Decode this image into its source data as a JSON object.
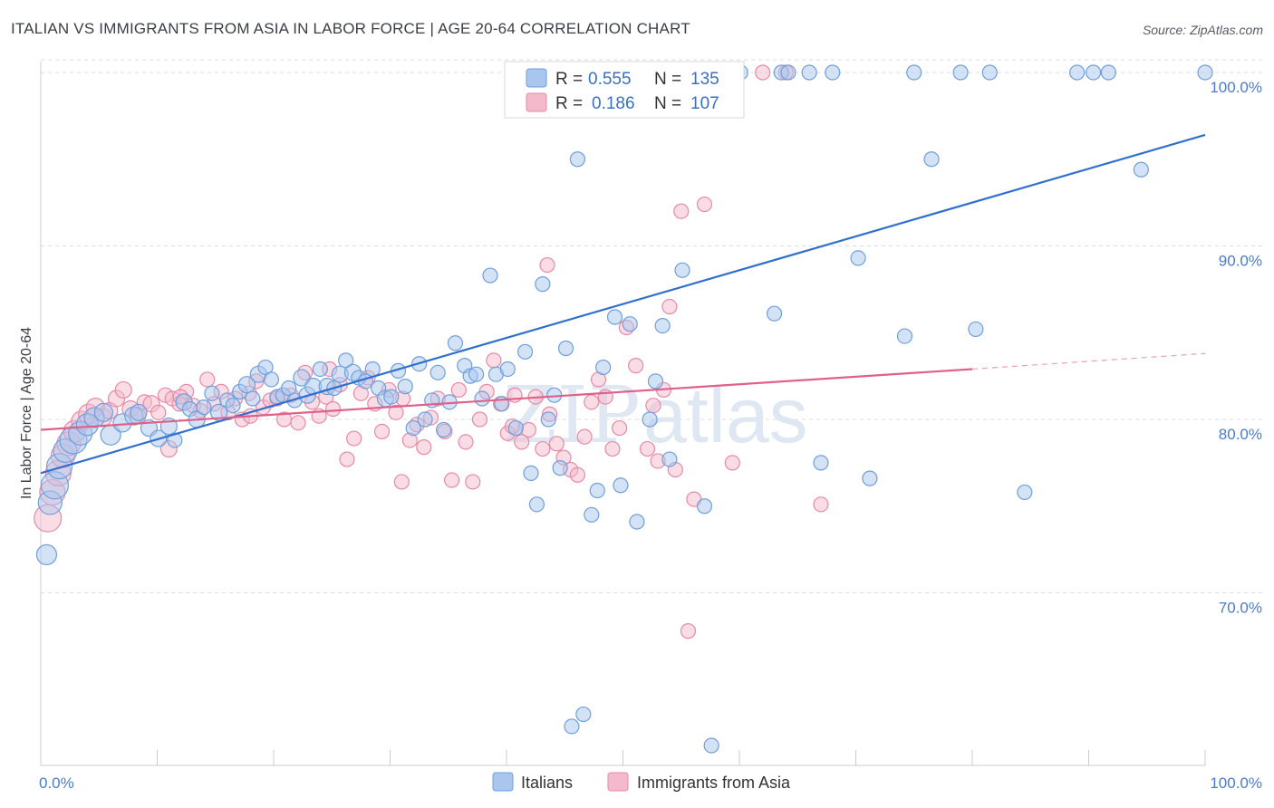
{
  "title": "ITALIAN VS IMMIGRANTS FROM ASIA IN LABOR FORCE | AGE 20-64 CORRELATION CHART",
  "source": "Source: ZipAtlas.com",
  "watermark": {
    "zip": "ZIP",
    "atlas": "atlas"
  },
  "legend": {
    "rows": [
      {
        "r_label": "R =",
        "r_value": "0.555",
        "n_label": "N =",
        "n_value": "135"
      },
      {
        "r_label": "R =",
        "r_value": "0.186",
        "n_label": "N =",
        "n_value": "107"
      }
    ]
  },
  "bottom_legend": [
    "Italians",
    "Immigrants from Asia"
  ],
  "colors": {
    "italians_fill": "#a9c6ee",
    "italians_stroke": "#6f9fdc",
    "italians_line": "#2f6fcf",
    "asia_fill": "#f5b9cc",
    "asia_stroke": "#e68aa8",
    "asia_line": "#e0608a",
    "grid": "#d9dde3",
    "tick_text": "#4a7cc7"
  },
  "chart_data": {
    "type": "scatter",
    "title": "ITALIAN VS IMMIGRANTS FROM ASIA IN LABOR FORCE | AGE 20-64 CORRELATION CHART",
    "xlabel": "",
    "ylabel": "In Labor Force | Age 20-64",
    "xlim": [
      0,
      100
    ],
    "ylim": [
      60.5,
      102.5
    ],
    "x_tick_labels": [
      "0.0%",
      "100.0%"
    ],
    "y_ticks": [
      70,
      80,
      90,
      100
    ],
    "y_tick_labels": [
      "70.0%",
      "80.0%",
      "90.0%",
      "100.0%"
    ],
    "grid": true,
    "legend_position": "top-center",
    "series": [
      {
        "name": "Italians",
        "R": 0.555,
        "N": 135,
        "trend": {
          "x0": 0,
          "y0": 76.9,
          "x1": 100,
          "y1": 96.4
        },
        "points": [
          [
            0.5,
            72.2,
            11
          ],
          [
            0.8,
            75.2,
            13
          ],
          [
            1.2,
            76.2,
            15
          ],
          [
            1.6,
            77.3,
            14
          ],
          [
            2.1,
            78.2,
            13
          ],
          [
            2.8,
            78.8,
            15
          ],
          [
            3.4,
            79.2,
            13
          ],
          [
            4.0,
            79.7,
            12
          ],
          [
            4.6,
            80.1,
            11
          ],
          [
            5.4,
            80.4,
            10
          ],
          [
            6.0,
            79.1,
            11
          ],
          [
            7.0,
            79.8,
            10
          ],
          [
            8.0,
            80.2,
            10
          ],
          [
            8.4,
            80.4,
            9
          ],
          [
            9.3,
            79.5,
            9
          ],
          [
            10.1,
            78.9,
            9
          ],
          [
            11.0,
            79.6,
            9
          ],
          [
            11.5,
            78.8,
            8
          ],
          [
            12.3,
            81.0,
            9
          ],
          [
            12.8,
            80.6,
            8
          ],
          [
            13.4,
            80.0,
            9
          ],
          [
            14.0,
            80.7,
            8
          ],
          [
            14.7,
            81.5,
            8
          ],
          [
            15.3,
            80.4,
            9
          ],
          [
            16.0,
            81.1,
            8
          ],
          [
            16.5,
            80.8,
            8
          ],
          [
            17.1,
            81.6,
            8
          ],
          [
            17.7,
            82.0,
            9
          ],
          [
            18.2,
            81.2,
            8
          ],
          [
            18.7,
            82.6,
            9
          ],
          [
            19.3,
            83.0,
            8
          ],
          [
            19.8,
            82.3,
            8
          ],
          [
            20.3,
            81.3,
            8
          ],
          [
            20.8,
            81.4,
            8
          ],
          [
            21.3,
            81.8,
            8
          ],
          [
            21.8,
            81.1,
            8
          ],
          [
            22.4,
            82.4,
            9
          ],
          [
            22.9,
            81.4,
            9
          ],
          [
            23.4,
            81.9,
            9
          ],
          [
            24.0,
            82.9,
            8
          ],
          [
            24.6,
            81.9,
            9
          ],
          [
            25.2,
            81.8,
            8
          ],
          [
            25.7,
            82.6,
            9
          ],
          [
            26.2,
            83.4,
            8
          ],
          [
            26.8,
            82.7,
            9
          ],
          [
            27.3,
            82.4,
            8
          ],
          [
            27.9,
            82.2,
            8
          ],
          [
            28.5,
            82.9,
            8
          ],
          [
            29.0,
            81.8,
            8
          ],
          [
            29.6,
            81.2,
            9
          ],
          [
            30.1,
            81.3,
            8
          ],
          [
            30.7,
            82.8,
            8
          ],
          [
            31.3,
            81.9,
            8
          ],
          [
            32.0,
            79.5,
            8
          ],
          [
            32.5,
            83.2,
            8
          ],
          [
            33.0,
            80.0,
            8
          ],
          [
            33.6,
            81.1,
            8
          ],
          [
            34.1,
            82.7,
            8
          ],
          [
            34.6,
            79.4,
            8
          ],
          [
            35.1,
            81.0,
            8
          ],
          [
            35.6,
            84.4,
            8
          ],
          [
            36.4,
            83.1,
            8
          ],
          [
            36.9,
            82.5,
            8
          ],
          [
            37.4,
            82.6,
            8
          ],
          [
            37.9,
            81.2,
            8
          ],
          [
            38.6,
            88.3,
            8
          ],
          [
            39.1,
            82.6,
            8
          ],
          [
            39.6,
            80.9,
            8
          ],
          [
            40.1,
            82.9,
            8
          ],
          [
            40.8,
            79.5,
            8
          ],
          [
            41.6,
            83.9,
            8
          ],
          [
            42.1,
            76.9,
            8
          ],
          [
            42.6,
            75.1,
            8
          ],
          [
            43.1,
            87.8,
            8
          ],
          [
            43.6,
            80.0,
            8
          ],
          [
            44.1,
            81.4,
            8
          ],
          [
            44.6,
            77.2,
            8
          ],
          [
            45.1,
            84.1,
            8
          ],
          [
            45.6,
            62.3,
            8
          ],
          [
            46.1,
            95.0,
            8
          ],
          [
            46.6,
            63.0,
            8
          ],
          [
            47.3,
            74.5,
            8
          ],
          [
            47.8,
            75.9,
            8
          ],
          [
            48.3,
            83.0,
            8
          ],
          [
            48.8,
            100.0,
            8
          ],
          [
            49.3,
            85.9,
            8
          ],
          [
            49.8,
            76.2,
            8
          ],
          [
            50.6,
            85.5,
            8
          ],
          [
            51.2,
            74.1,
            8
          ],
          [
            51.7,
            100.0,
            8
          ],
          [
            52.3,
            80.0,
            8
          ],
          [
            52.8,
            82.2,
            8
          ],
          [
            53.4,
            85.4,
            8
          ],
          [
            54.0,
            77.7,
            8
          ],
          [
            54.5,
            100.0,
            8
          ],
          [
            55.1,
            88.6,
            8
          ],
          [
            55.7,
            100.0,
            8
          ],
          [
            56.3,
            100.0,
            8
          ],
          [
            57.0,
            75.0,
            8
          ],
          [
            57.6,
            61.2,
            8
          ],
          [
            58.2,
            100.0,
            8
          ],
          [
            60.1,
            100.0,
            8
          ],
          [
            63.0,
            86.1,
            8
          ],
          [
            63.6,
            100.0,
            8
          ],
          [
            64.2,
            100.0,
            8
          ],
          [
            66.0,
            100.0,
            8
          ],
          [
            67.0,
            77.5,
            8
          ],
          [
            68.0,
            100.0,
            8
          ],
          [
            70.2,
            89.3,
            8
          ],
          [
            71.2,
            76.6,
            8
          ],
          [
            74.2,
            84.8,
            8
          ],
          [
            75.0,
            100.0,
            8
          ],
          [
            76.5,
            95.0,
            8
          ],
          [
            79.0,
            100.0,
            8
          ],
          [
            80.3,
            85.2,
            8
          ],
          [
            81.5,
            100.0,
            8
          ],
          [
            84.5,
            75.8,
            8
          ],
          [
            89.0,
            100.0,
            8
          ],
          [
            90.4,
            100.0,
            8
          ],
          [
            91.7,
            100.0,
            8
          ],
          [
            94.5,
            94.4,
            8
          ],
          [
            100.0,
            100.0,
            8
          ]
        ]
      },
      {
        "name": "Immigrants from Asia",
        "R": 0.186,
        "N": 107,
        "trend": {
          "x0": 0,
          "y0": 79.4,
          "x1": 80,
          "y1": 82.9,
          "dash_to_x": 100,
          "dash_to_y": 83.8
        },
        "points": [
          [
            0.6,
            74.3,
            15
          ],
          [
            1.0,
            75.8,
            14
          ],
          [
            1.5,
            76.9,
            14
          ],
          [
            1.9,
            77.9,
            13
          ],
          [
            2.4,
            78.6,
            13
          ],
          [
            2.9,
            79.3,
            12
          ],
          [
            3.5,
            79.9,
            11
          ],
          [
            4.1,
            80.3,
            11
          ],
          [
            4.7,
            80.7,
            10
          ],
          [
            5.3,
            80.1,
            10
          ],
          [
            5.9,
            80.5,
            9
          ],
          [
            6.5,
            81.2,
            9
          ],
          [
            7.1,
            81.7,
            9
          ],
          [
            7.7,
            80.6,
            9
          ],
          [
            8.3,
            80.2,
            9
          ],
          [
            8.9,
            81.0,
            8
          ],
          [
            9.5,
            80.9,
            9
          ],
          [
            10.1,
            80.4,
            8
          ],
          [
            10.7,
            81.4,
            8
          ],
          [
            11.3,
            81.2,
            8
          ],
          [
            11.0,
            78.3,
            9
          ],
          [
            11.9,
            80.9,
            8
          ],
          [
            12.5,
            81.6,
            8
          ],
          [
            13.1,
            80.8,
            8
          ],
          [
            13.7,
            80.5,
            8
          ],
          [
            14.3,
            82.3,
            8
          ],
          [
            14.9,
            80.9,
            8
          ],
          [
            15.5,
            81.6,
            8
          ],
          [
            16.1,
            80.4,
            8
          ],
          [
            16.7,
            81.2,
            8
          ],
          [
            17.3,
            80.0,
            8
          ],
          [
            17.9,
            81.5,
            8
          ],
          [
            18.5,
            82.2,
            8
          ],
          [
            19.1,
            80.7,
            8
          ],
          [
            19.7,
            81.1,
            8
          ],
          [
            20.3,
            81.2,
            8
          ],
          [
            20.9,
            80.0,
            8
          ],
          [
            21.5,
            81.4,
            8
          ],
          [
            22.1,
            79.8,
            8
          ],
          [
            22.7,
            82.7,
            8
          ],
          [
            23.3,
            81.0,
            8
          ],
          [
            23.9,
            80.2,
            8
          ],
          [
            24.5,
            81.3,
            8
          ],
          [
            25.1,
            80.6,
            8
          ],
          [
            25.7,
            82.0,
            8
          ],
          [
            26.3,
            77.7,
            8
          ],
          [
            26.9,
            78.9,
            8
          ],
          [
            27.5,
            81.5,
            8
          ],
          [
            28.1,
            82.4,
            8
          ],
          [
            28.7,
            80.9,
            8
          ],
          [
            29.3,
            79.3,
            8
          ],
          [
            29.9,
            81.7,
            8
          ],
          [
            30.5,
            80.4,
            8
          ],
          [
            31.1,
            81.2,
            8
          ],
          [
            31.7,
            78.8,
            8
          ],
          [
            32.3,
            79.7,
            8
          ],
          [
            32.9,
            78.4,
            8
          ],
          [
            33.5,
            80.1,
            8
          ],
          [
            34.1,
            81.2,
            8
          ],
          [
            34.7,
            79.3,
            8
          ],
          [
            35.3,
            76.5,
            8
          ],
          [
            35.9,
            81.7,
            8
          ],
          [
            36.5,
            78.7,
            8
          ],
          [
            37.1,
            76.4,
            8
          ],
          [
            37.7,
            80.0,
            8
          ],
          [
            38.3,
            81.6,
            8
          ],
          [
            38.9,
            83.4,
            8
          ],
          [
            39.5,
            80.9,
            8
          ],
          [
            40.1,
            79.2,
            8
          ],
          [
            40.7,
            81.4,
            8
          ],
          [
            41.3,
            78.7,
            8
          ],
          [
            41.9,
            79.4,
            8
          ],
          [
            42.5,
            81.3,
            8
          ],
          [
            43.1,
            78.3,
            8
          ],
          [
            43.7,
            80.3,
            8
          ],
          [
            44.3,
            78.6,
            8
          ],
          [
            44.9,
            77.8,
            8
          ],
          [
            45.5,
            77.1,
            8
          ],
          [
            46.1,
            76.8,
            8
          ],
          [
            46.7,
            79.0,
            8
          ],
          [
            47.3,
            81.0,
            8
          ],
          [
            47.9,
            82.3,
            8
          ],
          [
            48.5,
            81.3,
            8
          ],
          [
            49.1,
            78.3,
            8
          ],
          [
            49.7,
            79.5,
            8
          ],
          [
            50.3,
            85.3,
            8
          ],
          [
            51.1,
            83.1,
            8
          ],
          [
            52.1,
            78.3,
            8
          ],
          [
            52.6,
            80.8,
            8
          ],
          [
            53.0,
            77.6,
            8
          ],
          [
            53.5,
            81.7,
            8
          ],
          [
            54.0,
            86.5,
            8
          ],
          [
            54.5,
            77.1,
            8
          ],
          [
            55.0,
            92.0,
            8
          ],
          [
            55.6,
            67.8,
            8
          ],
          [
            56.1,
            75.4,
            8
          ],
          [
            57.0,
            92.4,
            8
          ],
          [
            59.4,
            77.5,
            8
          ],
          [
            62.0,
            100.0,
            8
          ],
          [
            64.0,
            100.0,
            8
          ],
          [
            67.0,
            75.1,
            8
          ],
          [
            40.5,
            79.6,
            8
          ],
          [
            43.5,
            88.9,
            8
          ],
          [
            31.0,
            76.4,
            8
          ],
          [
            24.8,
            82.9,
            8
          ],
          [
            18.0,
            80.2,
            8
          ],
          [
            12.0,
            81.3,
            8
          ]
        ]
      }
    ]
  }
}
